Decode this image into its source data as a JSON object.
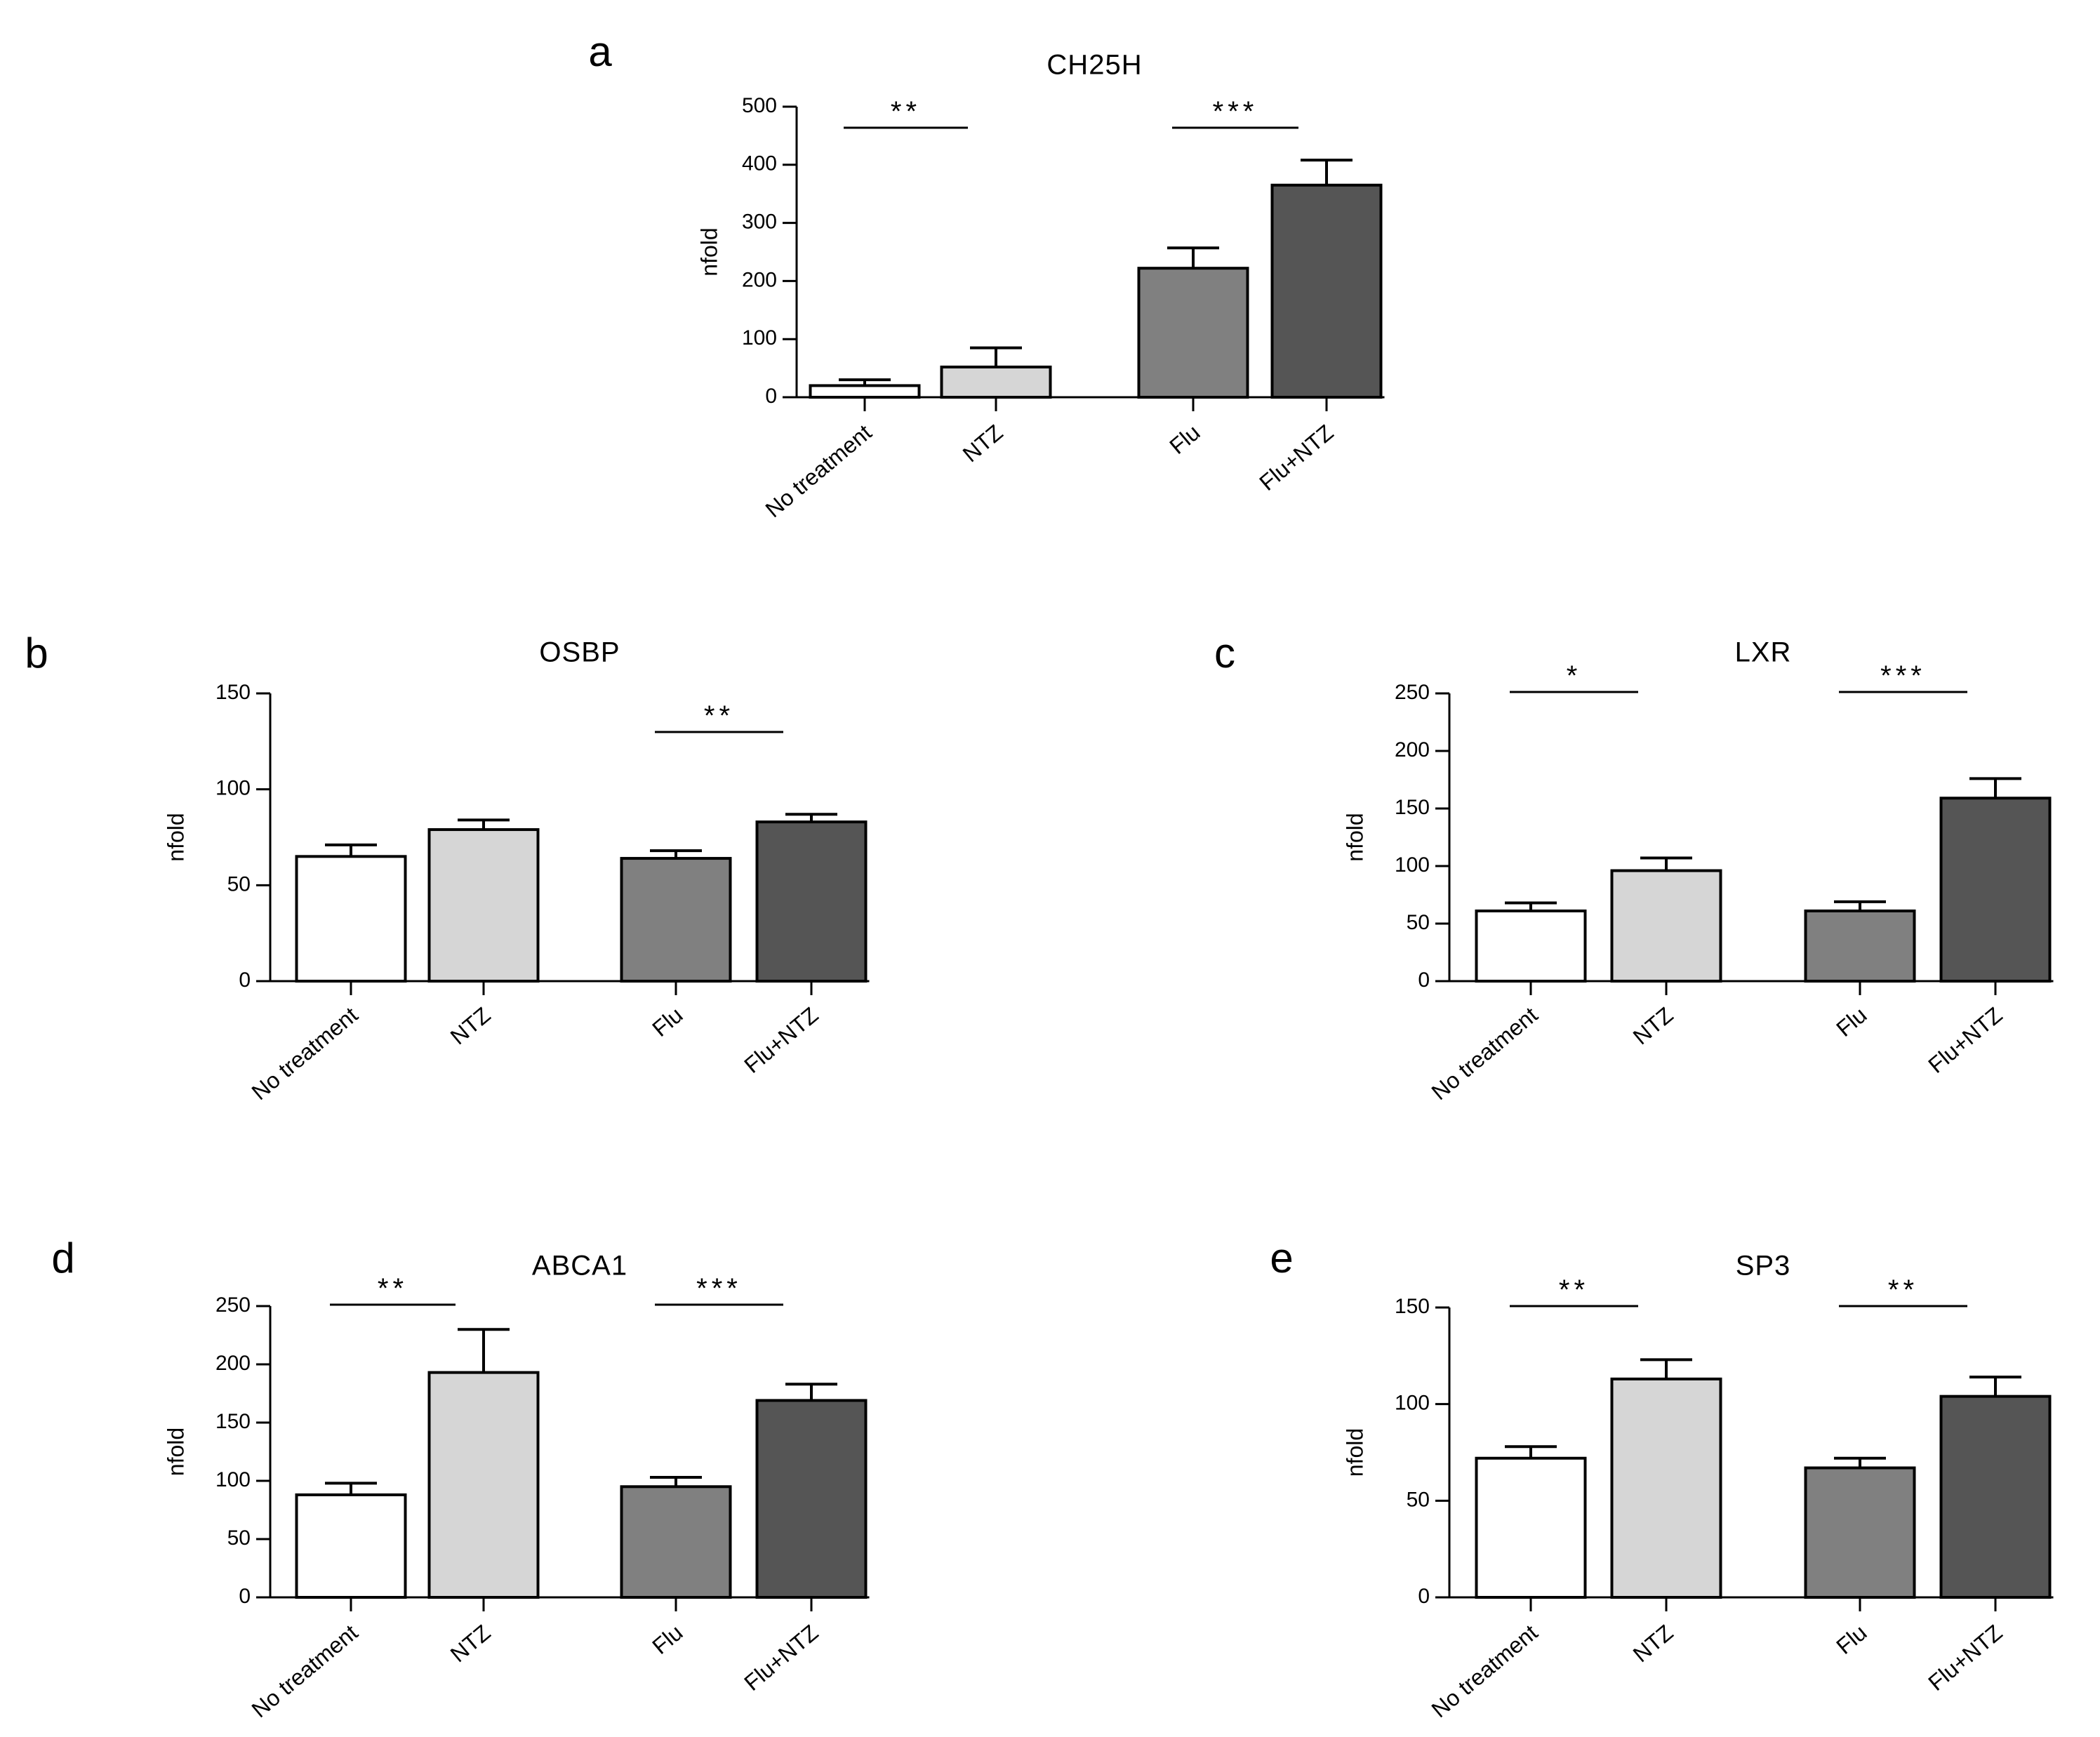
{
  "chart_data": [
    {
      "type": "bar",
      "panel": "a",
      "title": "CH25H",
      "ylabel": "nfold",
      "xlabel": "",
      "categories": [
        "No treatment",
        "NTZ",
        "Flu",
        "Flu+NTZ"
      ],
      "values": [
        20,
        52,
        222,
        365
      ],
      "errors": [
        10,
        33,
        35,
        43
      ],
      "ylim": [
        0,
        500
      ],
      "yticks": [
        "0",
        "100",
        "200",
        "300",
        "400",
        "500"
      ],
      "bar_colors": [
        "#ffffff",
        "#d6d6d6",
        "#808080",
        "#555555"
      ],
      "significance": [
        {
          "from": 0,
          "to": 1,
          "label": "**"
        },
        {
          "from": 2,
          "to": 3,
          "label": "***"
        }
      ]
    },
    {
      "type": "bar",
      "panel": "b",
      "title": "OSBP",
      "ylabel": "nfold",
      "xlabel": "",
      "categories": [
        "No treatment",
        "NTZ",
        "Flu",
        "Flu+NTZ"
      ],
      "values": [
        65,
        79,
        64,
        83
      ],
      "errors": [
        6,
        5,
        4,
        4
      ],
      "ylim": [
        0,
        150
      ],
      "yticks": [
        "0",
        "50",
        "100",
        "150"
      ],
      "bar_colors": [
        "#ffffff",
        "#d6d6d6",
        "#808080",
        "#555555"
      ],
      "significance": [
        {
          "from": 2,
          "to": 3,
          "label": "**"
        }
      ]
    },
    {
      "type": "bar",
      "panel": "c",
      "title": "LXR",
      "ylabel": "nfold",
      "xlabel": "",
      "categories": [
        "No treatment",
        "NTZ",
        "Flu",
        "Flu+NTZ"
      ],
      "values": [
        61,
        96,
        61,
        159
      ],
      "errors": [
        7,
        11,
        8,
        17
      ],
      "ylim": [
        0,
        250
      ],
      "yticks": [
        "0",
        "50",
        "100",
        "150",
        "200",
        "250"
      ],
      "bar_colors": [
        "#ffffff",
        "#d6d6d6",
        "#808080",
        "#555555"
      ],
      "significance": [
        {
          "from": 0,
          "to": 1,
          "label": "*"
        },
        {
          "from": 2,
          "to": 3,
          "label": "***"
        }
      ]
    },
    {
      "type": "bar",
      "panel": "d",
      "title": "ABCA1",
      "ylabel": "nfold",
      "xlabel": "",
      "categories": [
        "No treatment",
        "NTZ",
        "Flu",
        "Flu+NTZ"
      ],
      "values": [
        88,
        193,
        95,
        169
      ],
      "errors": [
        10,
        37,
        8,
        14
      ],
      "ylim": [
        0,
        250
      ],
      "yticks": [
        "0",
        "50",
        "100",
        "150",
        "200",
        "250"
      ],
      "bar_colors": [
        "#ffffff",
        "#d6d6d6",
        "#808080",
        "#555555"
      ],
      "significance": [
        {
          "from": 0,
          "to": 1,
          "label": "**"
        },
        {
          "from": 2,
          "to": 3,
          "label": "***"
        }
      ]
    },
    {
      "type": "bar",
      "panel": "e",
      "title": "SP3",
      "ylabel": "nfold",
      "xlabel": "",
      "categories": [
        "No treatment",
        "NTZ",
        "Flu",
        "Flu+NTZ"
      ],
      "values": [
        72,
        113,
        67,
        104
      ],
      "errors": [
        6,
        10,
        5,
        10
      ],
      "ylim": [
        0,
        150
      ],
      "yticks": [
        "0",
        "50",
        "100",
        "150"
      ],
      "bar_colors": [
        "#ffffff",
        "#d6d6d6",
        "#808080",
        "#555555"
      ],
      "significance": [
        {
          "from": 0,
          "to": 1,
          "label": "**"
        },
        {
          "from": 2,
          "to": 3,
          "label": "**"
        }
      ]
    }
  ]
}
